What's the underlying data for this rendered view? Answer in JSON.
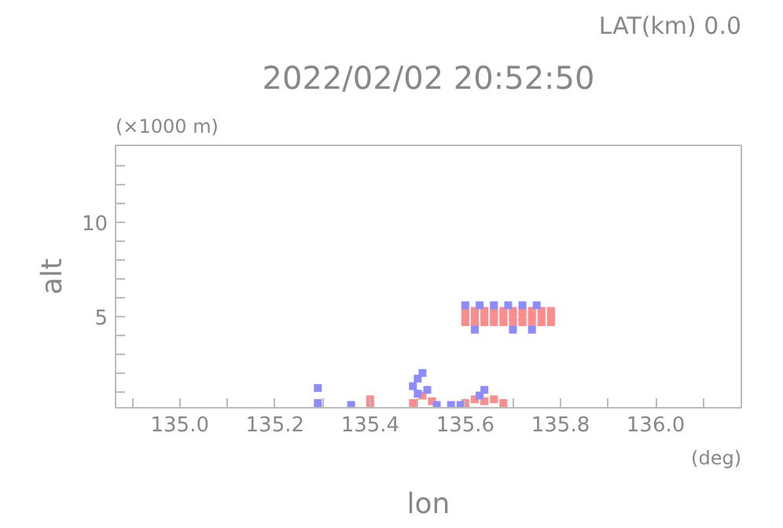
{
  "chart_data": {
    "type": "scatter",
    "title": "2022/02/02 20:52:50",
    "xlabel": "lon",
    "ylabel": "alt",
    "annotations": [
      "LAT(km) 0.0",
      "(×1000 m)",
      "(deg)"
    ],
    "marker": "square",
    "grid": false,
    "xlim": [
      134.865,
      136.18
    ],
    "ylim": [
      0.15,
      14.1
    ],
    "xticks": [
      {
        "value": 134.9,
        "label": null
      },
      {
        "value": 135.0,
        "label": "135.0"
      },
      {
        "value": 135.1,
        "label": null
      },
      {
        "value": 135.2,
        "label": "135.2"
      },
      {
        "value": 135.3,
        "label": null
      },
      {
        "value": 135.4,
        "label": "135.4"
      },
      {
        "value": 135.5,
        "label": null
      },
      {
        "value": 135.6,
        "label": "135.6"
      },
      {
        "value": 135.7,
        "label": null
      },
      {
        "value": 135.8,
        "label": "135.8"
      },
      {
        "value": 135.9,
        "label": null
      },
      {
        "value": 136.0,
        "label": "136.0"
      },
      {
        "value": 136.1,
        "label": null
      }
    ],
    "yticks": [
      {
        "value": 1,
        "label": null
      },
      {
        "value": 2,
        "label": null
      },
      {
        "value": 3,
        "label": null
      },
      {
        "value": 4,
        "label": null
      },
      5,
      {
        "value": 6,
        "label": null
      },
      {
        "value": 7,
        "label": null
      },
      {
        "value": 8,
        "label": null
      },
      {
        "value": 9,
        "label": null
      },
      10,
      {
        "value": 11,
        "label": null
      },
      {
        "value": 12,
        "label": null
      },
      {
        "value": 13,
        "label": null
      }
    ],
    "series": [
      {
        "color": "#ff8c8c",
        "x": [
          135.6,
          135.62,
          135.64,
          135.66,
          135.68,
          135.7,
          135.72,
          135.74,
          135.76,
          135.78,
          135.6,
          135.62,
          135.64,
          135.66,
          135.68,
          135.7,
          135.72,
          135.74,
          135.76,
          135.78,
          135.6,
          135.62,
          135.64,
          135.66,
          135.68,
          135.7,
          135.72,
          135.74,
          135.76,
          135.78,
          135.4,
          135.4,
          135.49,
          135.51,
          135.53,
          135.6,
          135.62,
          135.64,
          135.66,
          135.68
        ],
        "values": [
          4.7,
          4.7,
          4.7,
          4.7,
          4.7,
          4.7,
          4.7,
          4.7,
          4.7,
          4.7,
          5.0,
          5.0,
          5.0,
          5.0,
          5.0,
          5.0,
          5.0,
          5.0,
          5.0,
          5.0,
          5.3,
          5.3,
          5.3,
          5.3,
          5.3,
          5.3,
          5.3,
          5.3,
          5.3,
          5.3,
          0.3,
          0.6,
          0.4,
          0.8,
          0.5,
          0.4,
          0.6,
          0.5,
          0.6,
          0.4
        ]
      },
      {
        "color": "#8c8cff",
        "x": [
          135.6,
          135.63,
          135.66,
          135.69,
          135.72,
          135.75,
          135.62,
          135.7,
          135.74,
          135.29,
          135.29,
          135.36,
          135.49,
          135.5,
          135.51,
          135.5,
          135.52,
          135.54,
          135.57,
          135.59,
          135.63,
          135.64
        ],
        "values": [
          5.6,
          5.6,
          5.6,
          5.6,
          5.6,
          5.6,
          4.3,
          4.3,
          4.3,
          1.2,
          0.4,
          0.3,
          1.3,
          1.7,
          2.0,
          0.9,
          1.1,
          0.3,
          0.3,
          0.3,
          0.8,
          1.1
        ]
      }
    ]
  }
}
